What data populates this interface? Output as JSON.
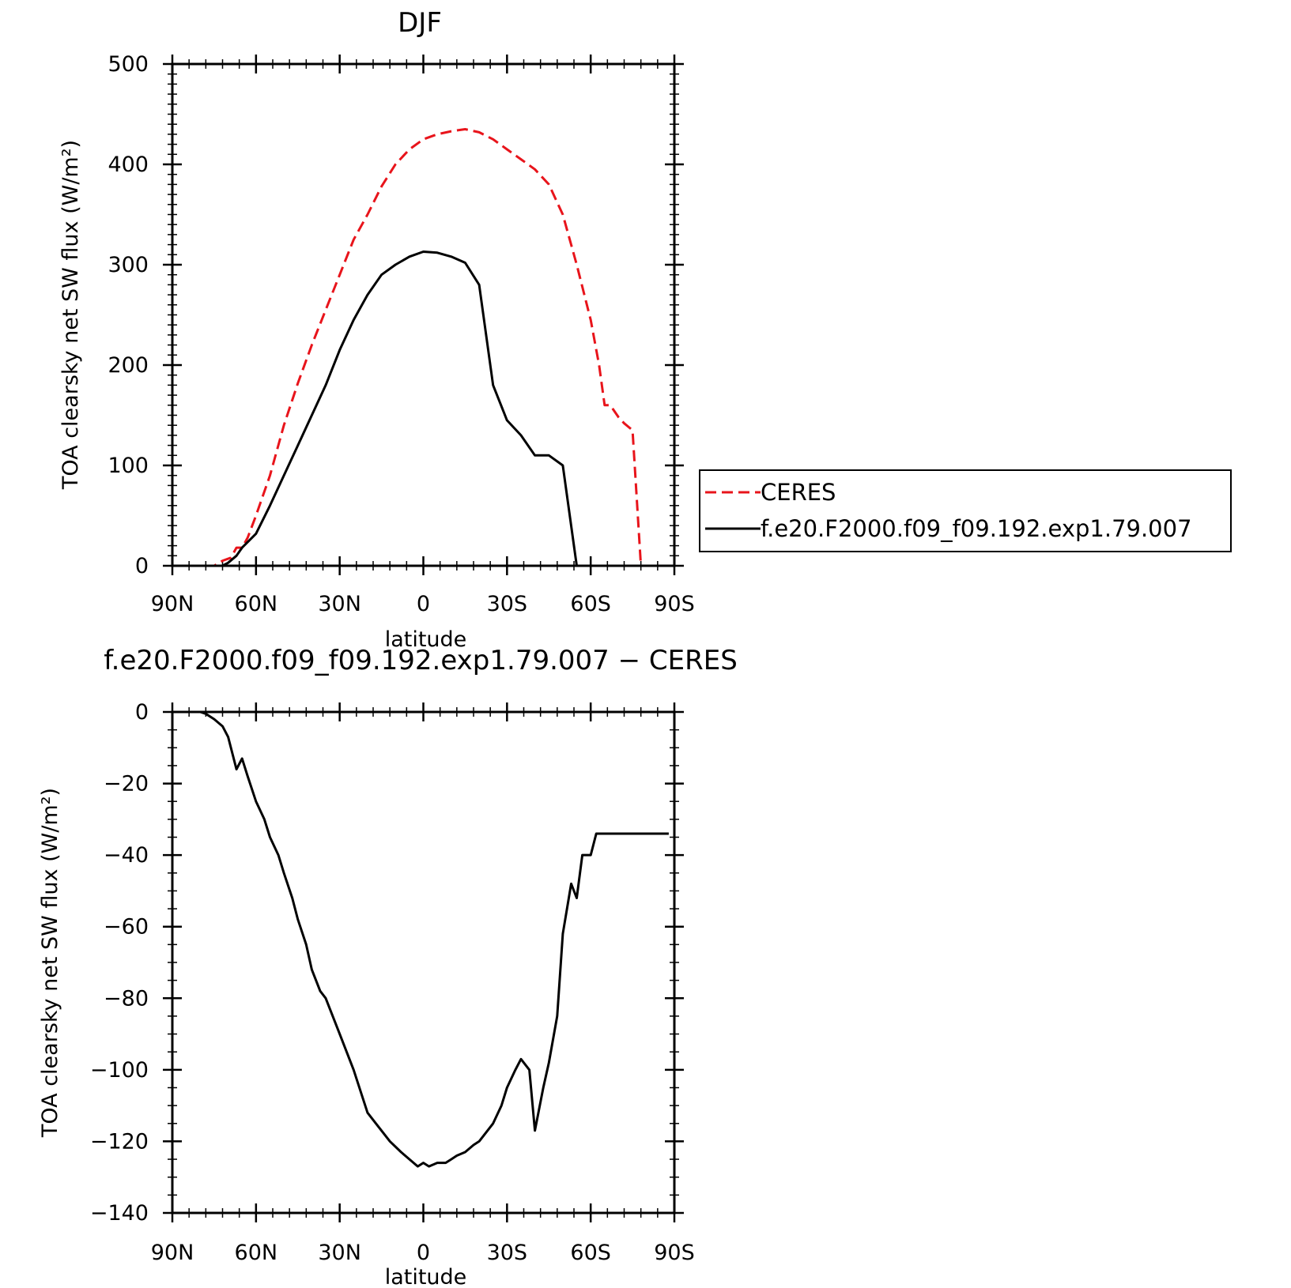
{
  "chart_data": [
    {
      "type": "line",
      "title": "DJF",
      "xlabel": "latitude",
      "ylabel": "TOA clearsky net SW flux (W/m²)",
      "xlim": [
        90,
        -90
      ],
      "ylim": [
        0,
        500
      ],
      "x_tick_values": [
        90,
        60,
        30,
        0,
        -30,
        -60,
        -90
      ],
      "x_tick_labels": [
        "90N",
        "60N",
        "30N",
        "0",
        "30S",
        "60S",
        "90S"
      ],
      "y_tick_values": [
        0,
        100,
        200,
        300,
        400,
        500
      ],
      "y_tick_labels": [
        "0",
        "100",
        "200",
        "300",
        "400",
        "500"
      ],
      "legend": {
        "placement": "right",
        "entries": [
          "CERES",
          "f.e20.F2000.f09_f09.192.exp1.79.007"
        ]
      },
      "series": [
        {
          "name": "CERES",
          "color": "#e8141b",
          "dash": "dashed",
          "x": [
            90,
            80,
            75,
            72,
            69,
            67,
            65,
            63,
            60,
            55,
            50,
            45,
            40,
            35,
            30,
            25,
            20,
            15,
            10,
            5,
            0,
            -5,
            -10,
            -15,
            -20,
            -25,
            -30,
            -35,
            -40,
            -45,
            -50,
            -55,
            -60,
            -63,
            -65,
            -67,
            -70,
            -72,
            -75,
            -78,
            -80,
            -83,
            -85,
            -88,
            -90
          ],
          "y": [
            0,
            0,
            0,
            5,
            8,
            18,
            18,
            28,
            50,
            90,
            140,
            182,
            220,
            255,
            290,
            325,
            350,
            378,
            400,
            415,
            425,
            430,
            433,
            435,
            432,
            425,
            415,
            405,
            395,
            380,
            350,
            300,
            245,
            200,
            160,
            160,
            148,
            142,
            135,
            0,
            0,
            0,
            0,
            0,
            0
          ]
        },
        {
          "name": "f.e20.F2000.f09_f09.192.exp1.79.007",
          "color": "#000000",
          "dash": "solid",
          "x": [
            90,
            80,
            75,
            72,
            70,
            67,
            65,
            60,
            55,
            50,
            45,
            40,
            35,
            30,
            25,
            20,
            15,
            10,
            5,
            0,
            -5,
            -10,
            -15,
            -20,
            -25,
            -30,
            -35,
            -40,
            -45,
            -50,
            -55,
            -60,
            -63,
            -65,
            -67,
            -70,
            -72,
            -75,
            -78,
            -80,
            -83,
            -85,
            -88,
            -90
          ],
          "y": [
            0,
            0,
            0,
            0,
            3,
            10,
            18,
            32,
            60,
            90,
            120,
            150,
            180,
            215,
            245,
            270,
            290,
            300,
            308,
            313,
            312,
            308,
            302,
            280,
            180,
            145,
            130,
            110,
            110,
            100,
            0,
            0,
            0,
            0,
            0,
            0,
            0,
            0,
            0,
            0,
            0,
            0,
            0,
            0
          ]
        }
      ]
    },
    {
      "type": "line",
      "title": "f.e20.F2000.f09_f09.192.exp1.79.007 − CERES",
      "xlabel": "latitude",
      "ylabel": "TOA clearsky net SW flux (W/m²)",
      "xlim": [
        90,
        -90
      ],
      "ylim": [
        -140,
        0
      ],
      "x_tick_values": [
        90,
        60,
        30,
        0,
        -30,
        -60,
        -90
      ],
      "x_tick_labels": [
        "90N",
        "60N",
        "30N",
        "0",
        "30S",
        "60S",
        "90S"
      ],
      "y_tick_values": [
        0,
        -20,
        -40,
        -60,
        -80,
        -100,
        -120,
        -140
      ],
      "y_tick_labels": [
        "0",
        "−20",
        "−40",
        "−60",
        "−80",
        "−100",
        "−120",
        "−140"
      ],
      "series": [
        {
          "color": "#000000",
          "dash": "solid",
          "x": [
            90,
            80,
            78,
            75,
            72,
            70,
            67,
            65,
            63,
            60,
            57,
            55,
            52,
            50,
            47,
            45,
            42,
            40,
            37,
            35,
            30,
            25,
            20,
            17,
            12,
            8,
            5,
            2,
            0,
            -2,
            -5,
            -8,
            -10,
            -12,
            -15,
            -18,
            -20,
            -25,
            -28,
            -30,
            -33,
            -35,
            -38,
            -40,
            -43,
            -45,
            -48,
            -50,
            -53,
            -55,
            -57,
            -60,
            -62,
            -63,
            -64,
            -66,
            -68,
            -70,
            -72,
            -74,
            -76,
            -78,
            -80,
            -83,
            -85,
            -88
          ],
          "y": [
            0,
            0,
            -0.5,
            -2,
            -4,
            -7,
            -16,
            -13,
            -18,
            -25,
            -30,
            -35,
            -40,
            -45,
            -52,
            -58,
            -65,
            -72,
            -78,
            -80,
            -90,
            -100,
            -112,
            -115,
            -120,
            -123,
            -125,
            -127,
            -126,
            -127,
            -126,
            -126,
            -125,
            -124,
            -123,
            -121,
            -120,
            -115,
            -110,
            -105,
            -100,
            -97,
            -100,
            -117,
            -105,
            -98,
            -85,
            -62,
            -48,
            -52,
            -40,
            -40,
            -34,
            -34,
            -34,
            -34,
            -34,
            -34,
            -34,
            -34,
            -34,
            -34,
            -34,
            -34,
            -34,
            -34
          ]
        }
      ]
    }
  ]
}
